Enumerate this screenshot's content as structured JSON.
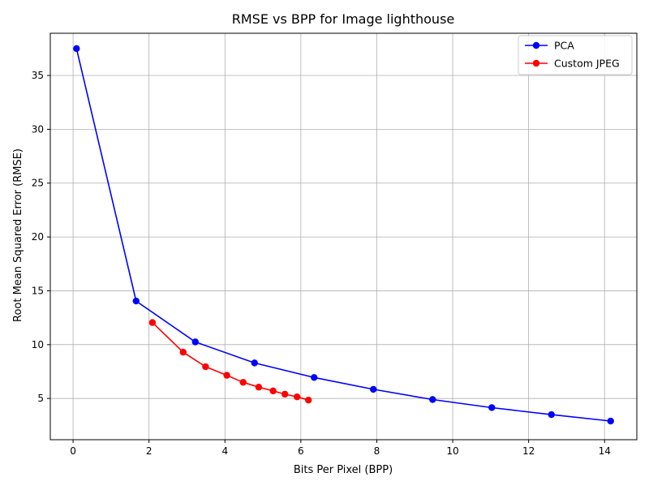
{
  "chart_data": {
    "type": "line",
    "title": "RMSE vs BPP for Image lighthouse",
    "xlabel": "Bits Per Pixel (BPP)",
    "ylabel": "Root Mean Squared Error (RMSE)",
    "xlim": [
      -0.6,
      14.85
    ],
    "ylim": [
      1.17,
      38.92
    ],
    "xticks": [
      0,
      2,
      4,
      6,
      8,
      10,
      12,
      14
    ],
    "yticks": [
      5,
      10,
      15,
      20,
      25,
      30,
      35
    ],
    "grid": true,
    "legend_position": "top-right",
    "series": [
      {
        "name": "PCA",
        "color": "#0000ff",
        "x": [
          0.09,
          1.66,
          3.22,
          4.78,
          6.35,
          7.91,
          9.47,
          11.03,
          12.6,
          14.16
        ],
        "y": [
          37.5,
          14.05,
          10.25,
          8.3,
          6.95,
          5.85,
          4.9,
          4.15,
          3.5,
          2.9
        ]
      },
      {
        "name": "Custom JPEG",
        "color": "#ff0000",
        "x": [
          2.09,
          2.9,
          3.49,
          4.05,
          4.48,
          4.89,
          5.27,
          5.58,
          5.9,
          6.2
        ],
        "y": [
          12.05,
          9.3,
          7.95,
          7.15,
          6.5,
          6.05,
          5.7,
          5.4,
          5.15,
          4.85
        ]
      }
    ]
  }
}
